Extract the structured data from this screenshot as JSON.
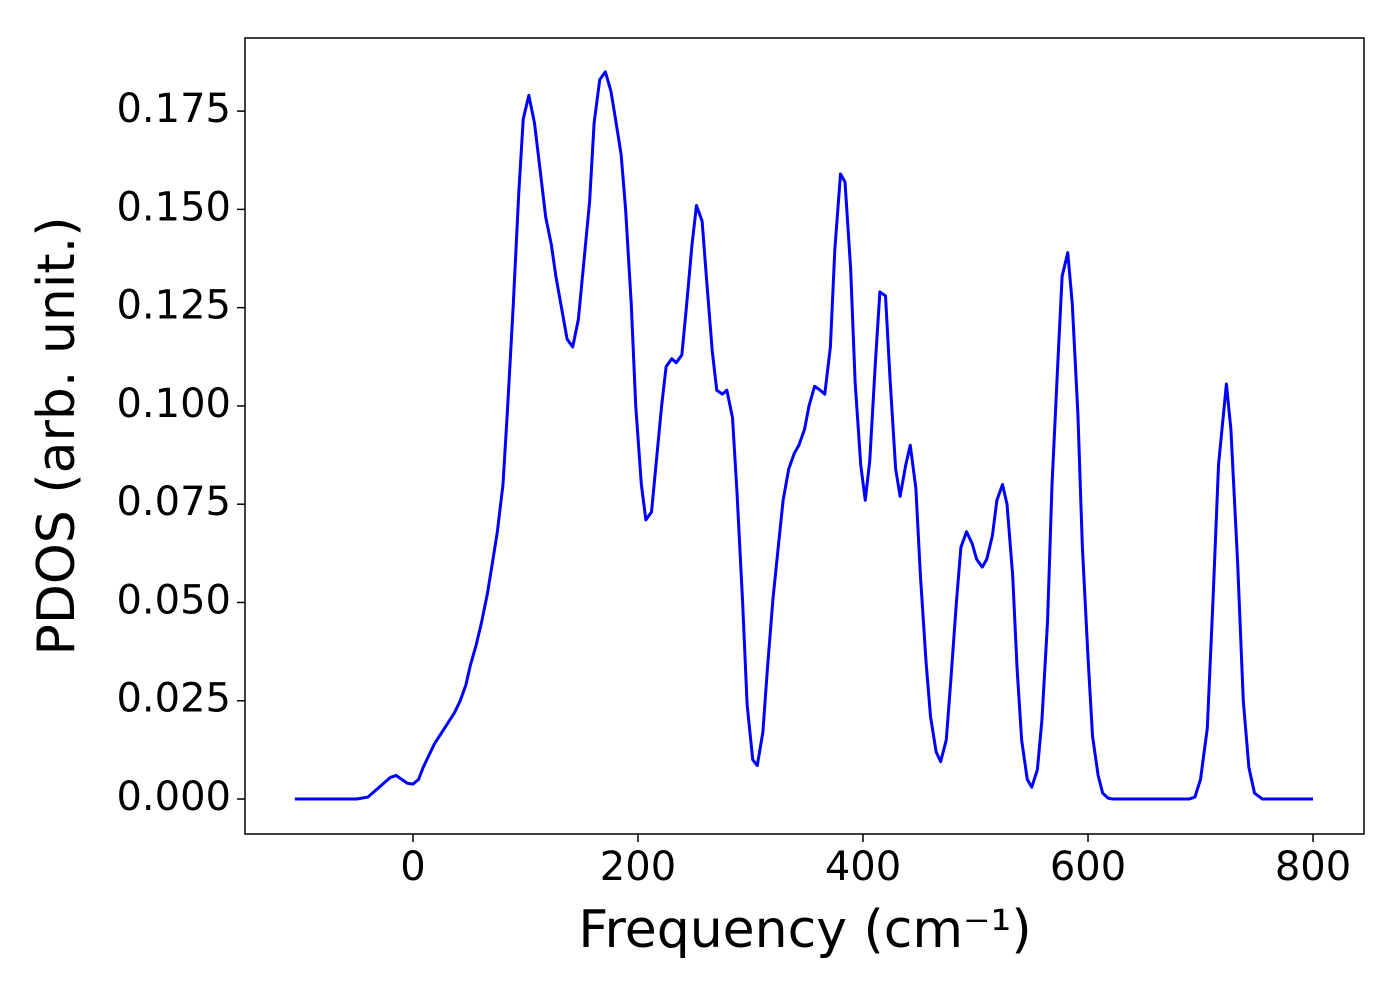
{
  "chart_data": {
    "type": "line",
    "xlabel": "Frequency (cm⁻¹)",
    "ylabel": "PDOS (arb. unit.)",
    "xlim": [
      -149.3,
      845.3
    ],
    "ylim": [
      -0.0089,
      0.1936
    ],
    "xticks": [
      0,
      200,
      400,
      600,
      800
    ],
    "yticks": [
      {
        "value": 0,
        "label": "0.000"
      },
      {
        "value": 0.025,
        "label": "0.025"
      },
      {
        "value": 0.05,
        "label": "0.050"
      },
      {
        "value": 0.075,
        "label": "0.075"
      },
      {
        "value": 0.1,
        "label": "0.100"
      },
      {
        "value": 0.125,
        "label": "0.125"
      },
      {
        "value": 0.15,
        "label": "0.150"
      },
      {
        "value": 0.175,
        "label": "0.175"
      }
    ],
    "series": [
      {
        "color": "#0000ff",
        "x": [
          -105,
          -50,
          -40,
          -30,
          -20,
          -15,
          -10,
          -5,
          0,
          5,
          9,
          19,
          28,
          37,
          42,
          47,
          51,
          56,
          61,
          66,
          70,
          75,
          80,
          84,
          89,
          94,
          98,
          103,
          108,
          113,
          118,
          123,
          127,
          132,
          137,
          142,
          147,
          152,
          157,
          161,
          166,
          171,
          176,
          180,
          185,
          189,
          194,
          198,
          203,
          207,
          212,
          216,
          221,
          225,
          230,
          234,
          239,
          243,
          248,
          252,
          257,
          261,
          266,
          270,
          275,
          279,
          284,
          288,
          293,
          297,
          302,
          306,
          311,
          315,
          320,
          325,
          329,
          334,
          339,
          343,
          348,
          352,
          357,
          362,
          366,
          371,
          375,
          380,
          384,
          389,
          393,
          398,
          402,
          406,
          411,
          415,
          420,
          424,
          429,
          433,
          438,
          442,
          447,
          451,
          456,
          460,
          465,
          469,
          474,
          478,
          483,
          487,
          492,
          497,
          501,
          506,
          510,
          515,
          519,
          524,
          528,
          533,
          537,
          541,
          546,
          550,
          555,
          559,
          564,
          568,
          573,
          577,
          582,
          586,
          591,
          595,
          600,
          604,
          609,
          613,
          618,
          622,
          690,
          695,
          700,
          706,
          711,
          716,
          723,
          727,
          733,
          738,
          743,
          748,
          755,
          800
        ],
        "values": [
          0,
          0,
          0.0005,
          0.003,
          0.0055,
          0.006,
          0.005,
          0.004,
          0.0038,
          0.005,
          0.008,
          0.014,
          0.018,
          0.022,
          0.025,
          0.029,
          0.034,
          0.039,
          0.045,
          0.052,
          0.059,
          0.068,
          0.08,
          0.099,
          0.125,
          0.154,
          0.173,
          0.179,
          0.172,
          0.16,
          0.148,
          0.141,
          0.133,
          0.125,
          0.117,
          0.115,
          0.122,
          0.137,
          0.152,
          0.172,
          0.183,
          0.185,
          0.18,
          0.173,
          0.164,
          0.15,
          0.126,
          0.1,
          0.08,
          0.071,
          0.073,
          0.085,
          0.1,
          0.11,
          0.112,
          0.111,
          0.113,
          0.125,
          0.141,
          0.151,
          0.147,
          0.132,
          0.114,
          0.104,
          0.103,
          0.104,
          0.097,
          0.078,
          0.05,
          0.024,
          0.01,
          0.0085,
          0.017,
          0.033,
          0.051,
          0.065,
          0.076,
          0.084,
          0.088,
          0.09,
          0.094,
          0.1,
          0.105,
          0.104,
          0.103,
          0.115,
          0.14,
          0.159,
          0.157,
          0.135,
          0.106,
          0.085,
          0.076,
          0.086,
          0.111,
          0.129,
          0.128,
          0.107,
          0.084,
          0.077,
          0.085,
          0.09,
          0.079,
          0.057,
          0.035,
          0.021,
          0.012,
          0.0095,
          0.015,
          0.03,
          0.05,
          0.064,
          0.068,
          0.065,
          0.061,
          0.059,
          0.061,
          0.067,
          0.076,
          0.08,
          0.075,
          0.057,
          0.033,
          0.015,
          0.005,
          0.003,
          0.0075,
          0.02,
          0.045,
          0.08,
          0.11,
          0.133,
          0.139,
          0.126,
          0.098,
          0.064,
          0.036,
          0.016,
          0.006,
          0.0015,
          0.0002,
          0,
          0,
          0.0005,
          0.005,
          0.018,
          0.05,
          0.085,
          0.1056,
          0.094,
          0.06,
          0.025,
          0.008,
          0.0015,
          0,
          0
        ]
      }
    ]
  }
}
